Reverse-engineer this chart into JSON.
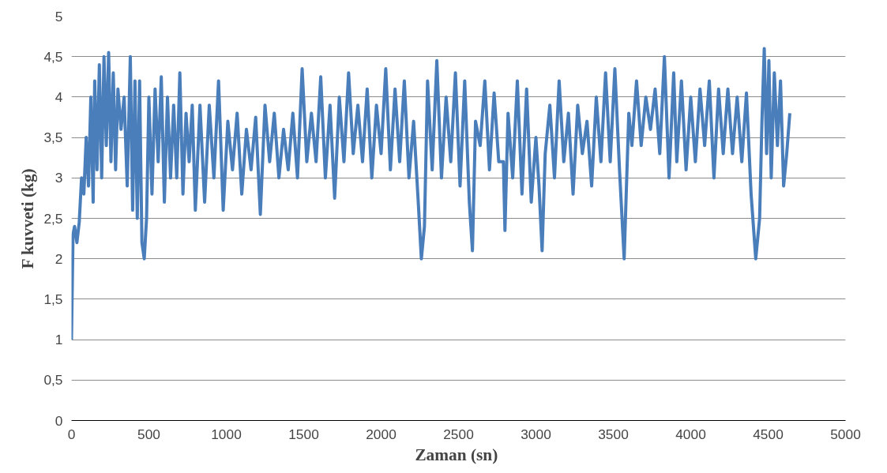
{
  "chart_data": {
    "type": "line",
    "xlabel": "Zaman  (sn)",
    "ylabel": "F kuvveti (kg)",
    "xlim": [
      0,
      5000
    ],
    "xticks": [
      0,
      500,
      1000,
      1500,
      2000,
      2500,
      3000,
      3500,
      4000,
      4500,
      5000
    ],
    "ylim": [
      0,
      5
    ],
    "yticks": [
      0,
      {
        "value": 0.5,
        "label": "0,5"
      },
      1,
      {
        "value": 1.5,
        "label": "1,5"
      },
      2,
      {
        "value": 2.5,
        "label": "2,5"
      },
      3,
      {
        "value": 3.5,
        "label": "3,5"
      },
      4,
      {
        "value": 4.5,
        "label": "4,5"
      },
      5
    ],
    "grid": "y",
    "marker": "none",
    "line_style": "solid",
    "series": [
      {
        "color": "#4a7ebb",
        "x": [
          0,
          10,
          20,
          35,
          50,
          65,
          80,
          95,
          110,
          125,
          140,
          150,
          165,
          180,
          195,
          210,
          225,
          240,
          255,
          270,
          285,
          300,
          320,
          340,
          360,
          380,
          395,
          410,
          425,
          440,
          455,
          470,
          485,
          500,
          520,
          540,
          560,
          580,
          600,
          620,
          640,
          660,
          680,
          700,
          720,
          740,
          760,
          780,
          800,
          830,
          860,
          890,
          920,
          950,
          980,
          1010,
          1040,
          1070,
          1100,
          1130,
          1160,
          1190,
          1220,
          1250,
          1280,
          1310,
          1340,
          1370,
          1400,
          1430,
          1460,
          1490,
          1520,
          1550,
          1580,
          1610,
          1640,
          1670,
          1700,
          1730,
          1760,
          1790,
          1820,
          1850,
          1880,
          1910,
          1940,
          1970,
          2000,
          2030,
          2060,
          2090,
          2120,
          2150,
          2180,
          2210,
          2240,
          2260,
          2280,
          2300,
          2330,
          2360,
          2390,
          2420,
          2450,
          2480,
          2510,
          2540,
          2570,
          2590,
          2610,
          2640,
          2670,
          2700,
          2730,
          2760,
          2790,
          2800,
          2820,
          2850,
          2880,
          2910,
          2940,
          2970,
          3000,
          3020,
          3040,
          3060,
          3090,
          3120,
          3150,
          3180,
          3210,
          3240,
          3270,
          3300,
          3330,
          3360,
          3390,
          3420,
          3450,
          3480,
          3510,
          3540,
          3570,
          3600,
          3620,
          3650,
          3680,
          3710,
          3740,
          3770,
          3800,
          3830,
          3860,
          3890,
          3910,
          3940,
          3970,
          4000,
          4030,
          4060,
          4090,
          4120,
          4150,
          4180,
          4210,
          4240,
          4270,
          4300,
          4330,
          4360,
          4390,
          4420,
          4445,
          4460,
          4475,
          4490,
          4505,
          4520,
          4540,
          4560,
          4580,
          4600,
          4620,
          4640
        ],
        "values": [
          1.0,
          2.3,
          2.4,
          2.2,
          2.45,
          3.0,
          2.8,
          3.5,
          2.9,
          4.0,
          2.7,
          4.2,
          3.1,
          4.4,
          3.0,
          4.5,
          3.4,
          4.55,
          3.2,
          4.3,
          3.1,
          4.1,
          3.6,
          4.0,
          2.9,
          4.5,
          2.6,
          4.2,
          2.5,
          4.2,
          2.2,
          2.0,
          2.5,
          4.0,
          2.8,
          4.1,
          3.2,
          4.25,
          2.7,
          4.0,
          3.0,
          3.9,
          3.0,
          4.3,
          2.8,
          3.8,
          3.2,
          3.9,
          2.6,
          3.9,
          2.7,
          3.9,
          3.0,
          4.2,
          2.6,
          3.7,
          3.1,
          3.8,
          2.8,
          3.6,
          3.1,
          3.75,
          2.55,
          3.9,
          3.2,
          3.8,
          3.0,
          3.6,
          3.1,
          3.8,
          3.0,
          4.35,
          3.2,
          3.8,
          3.2,
          4.25,
          3.0,
          3.9,
          2.75,
          4.0,
          3.2,
          4.3,
          3.3,
          3.9,
          3.2,
          4.1,
          3.0,
          3.9,
          3.3,
          4.35,
          3.1,
          4.1,
          3.2,
          4.2,
          3.0,
          3.7,
          2.7,
          2.0,
          2.4,
          4.2,
          3.1,
          4.45,
          3.0,
          4.0,
          3.2,
          4.3,
          2.9,
          4.2,
          2.7,
          2.1,
          3.7,
          3.4,
          4.2,
          3.1,
          4.05,
          3.2,
          3.2,
          2.35,
          3.8,
          3.0,
          4.2,
          2.8,
          4.1,
          2.7,
          3.5,
          2.9,
          2.1,
          3.3,
          3.9,
          3.0,
          4.2,
          3.2,
          3.8,
          2.8,
          3.9,
          3.3,
          3.7,
          2.9,
          4.0,
          3.2,
          4.3,
          3.2,
          4.35,
          3.1,
          2.0,
          3.8,
          3.4,
          4.2,
          3.4,
          4.0,
          3.6,
          4.1,
          3.3,
          4.5,
          3.0,
          4.3,
          3.2,
          4.2,
          3.1,
          4.0,
          3.2,
          4.1,
          3.4,
          4.2,
          3.0,
          4.1,
          3.3,
          4.1,
          3.3,
          4.0,
          3.2,
          4.05,
          2.8,
          2.0,
          2.5,
          3.7,
          4.6,
          3.3,
          4.45,
          3.0,
          4.3,
          3.4,
          4.2,
          2.9,
          3.3,
          3.8
        ]
      }
    ]
  }
}
